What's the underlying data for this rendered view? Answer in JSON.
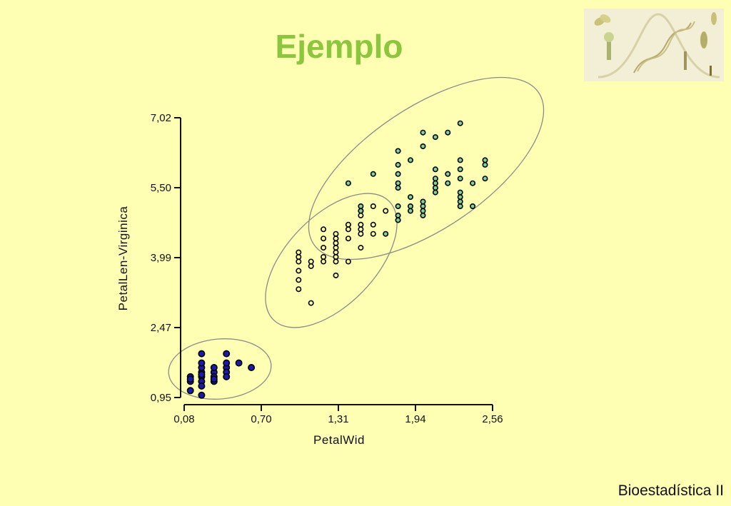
{
  "slide": {
    "title": "Ejemplo",
    "footer": "Bioestadística II",
    "logo_icon": "biology-collage-logo"
  },
  "chart_data": {
    "type": "scatter",
    "title": "",
    "xlabel": "PetalWid",
    "ylabel": "PetalLen-Virginica",
    "xlim": [
      0.08,
      2.56
    ],
    "ylim": [
      0.95,
      7.02
    ],
    "x_ticks": [
      "0,08",
      "0,70",
      "1,31",
      "1,94",
      "2,56"
    ],
    "y_ticks": [
      "0,95",
      "2,47",
      "3,99",
      "5,50",
      "7,02"
    ],
    "grid": false,
    "legend": "none",
    "colors": {
      "setosa": "#1A1AB0",
      "versicolor": "#FFFF99",
      "virginica": "#7FD88E",
      "marker_edge": "#000000",
      "ellipse": "#8A8A8A"
    },
    "series": [
      {
        "values": [
          [
            0.13,
            1.4
          ],
          [
            0.13,
            1.3
          ],
          [
            0.13,
            1.1
          ],
          [
            0.13,
            1.35
          ],
          [
            0.22,
            1.5
          ],
          [
            0.22,
            1.4
          ],
          [
            0.22,
            1.3
          ],
          [
            0.22,
            1.6
          ],
          [
            0.22,
            1.7
          ],
          [
            0.22,
            1.2
          ],
          [
            0.22,
            1.9
          ],
          [
            0.22,
            1.0
          ],
          [
            0.22,
            1.45
          ],
          [
            0.32,
            1.5
          ],
          [
            0.32,
            1.4
          ],
          [
            0.32,
            1.3
          ],
          [
            0.32,
            1.6
          ],
          [
            0.32,
            1.35
          ],
          [
            0.42,
            1.9
          ],
          [
            0.42,
            1.6
          ],
          [
            0.42,
            1.5
          ],
          [
            0.42,
            1.7
          ],
          [
            0.42,
            1.4
          ],
          [
            0.52,
            1.7
          ],
          [
            0.62,
            1.6
          ]
        ]
      },
      {
        "values": [
          [
            1.0,
            3.3
          ],
          [
            1.0,
            3.5
          ],
          [
            1.0,
            3.7
          ],
          [
            1.0,
            3.9
          ],
          [
            1.0,
            4.0
          ],
          [
            1.0,
            4.1
          ],
          [
            1.1,
            3.0
          ],
          [
            1.1,
            3.8
          ],
          [
            1.1,
            3.9
          ],
          [
            1.2,
            4.0
          ],
          [
            1.2,
            3.9
          ],
          [
            1.2,
            4.2
          ],
          [
            1.2,
            4.4
          ],
          [
            1.2,
            4.6
          ],
          [
            1.3,
            3.6
          ],
          [
            1.3,
            3.9
          ],
          [
            1.3,
            4.0
          ],
          [
            1.3,
            4.1
          ],
          [
            1.3,
            4.2
          ],
          [
            1.3,
            4.3
          ],
          [
            1.3,
            4.4
          ],
          [
            1.3,
            4.5
          ],
          [
            1.4,
            3.9
          ],
          [
            1.4,
            4.4
          ],
          [
            1.4,
            4.6
          ],
          [
            1.4,
            4.7
          ],
          [
            1.5,
            4.2
          ],
          [
            1.5,
            4.5
          ],
          [
            1.5,
            4.6
          ],
          [
            1.5,
            4.7
          ],
          [
            1.5,
            4.9
          ],
          [
            1.5,
            5.0
          ],
          [
            1.6,
            4.5
          ],
          [
            1.6,
            4.7
          ],
          [
            1.6,
            5.1
          ],
          [
            1.7,
            5.0
          ],
          [
            1.8,
            4.8
          ]
        ]
      },
      {
        "values": [
          [
            1.4,
            5.6
          ],
          [
            1.5,
            5.1
          ],
          [
            1.5,
            5.0
          ],
          [
            1.6,
            5.8
          ],
          [
            1.7,
            4.5
          ],
          [
            1.8,
            4.8
          ],
          [
            1.8,
            4.9
          ],
          [
            1.8,
            5.1
          ],
          [
            1.8,
            5.5
          ],
          [
            1.8,
            5.6
          ],
          [
            1.8,
            5.8
          ],
          [
            1.8,
            6.0
          ],
          [
            1.8,
            6.3
          ],
          [
            1.9,
            5.0
          ],
          [
            1.9,
            5.1
          ],
          [
            1.9,
            5.3
          ],
          [
            1.9,
            6.1
          ],
          [
            2.0,
            4.9
          ],
          [
            2.0,
            5.0
          ],
          [
            2.0,
            5.1
          ],
          [
            2.0,
            5.2
          ],
          [
            2.0,
            6.4
          ],
          [
            2.0,
            6.7
          ],
          [
            2.1,
            5.4
          ],
          [
            2.1,
            5.5
          ],
          [
            2.1,
            5.6
          ],
          [
            2.1,
            5.7
          ],
          [
            2.1,
            5.9
          ],
          [
            2.1,
            6.6
          ],
          [
            2.2,
            5.6
          ],
          [
            2.2,
            5.8
          ],
          [
            2.2,
            6.7
          ],
          [
            2.3,
            5.1
          ],
          [
            2.3,
            5.2
          ],
          [
            2.3,
            5.3
          ],
          [
            2.3,
            5.4
          ],
          [
            2.3,
            5.7
          ],
          [
            2.3,
            5.9
          ],
          [
            2.3,
            6.1
          ],
          [
            2.3,
            6.9
          ],
          [
            2.4,
            5.1
          ],
          [
            2.4,
            5.6
          ],
          [
            2.5,
            5.7
          ],
          [
            2.5,
            6.0
          ],
          [
            2.5,
            6.1
          ]
        ]
      }
    ]
  }
}
